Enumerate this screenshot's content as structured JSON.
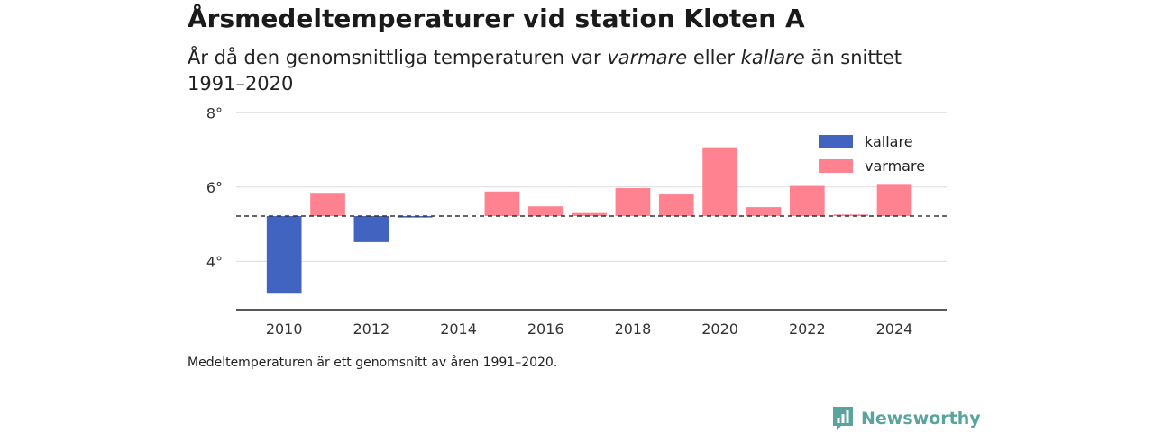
{
  "title": "Årsmedeltemperaturer vid station Kloten A",
  "subtitle": {
    "part1": "År då den genomsnittliga temperaturen var ",
    "warm": "varmare",
    "part2": " eller ",
    "cold": "kallare",
    "part3": " än snittet 1991–2020"
  },
  "footnote": "Medeltemperaturen är ett genomsnitt av åren 1991–2020.",
  "brand": {
    "name": "Newsworthy",
    "icon": "newsworthy-logo-icon",
    "color": "#5aa39e"
  },
  "chart_data": {
    "type": "bar",
    "baseline": 5.22,
    "ylim": [
      2.7,
      8.2
    ],
    "y_ticks": [
      4,
      6,
      8
    ],
    "y_tick_suffix": "°",
    "x_ticks": [
      2010,
      2012,
      2014,
      2016,
      2018,
      2020,
      2022,
      2024
    ],
    "xlim": [
      2008.9,
      2025.2
    ],
    "grid": true,
    "legend_position": "top-right",
    "series": [
      {
        "name": "kallare",
        "color": "#4164c0"
      },
      {
        "name": "varmare",
        "color": "#ff8290"
      }
    ],
    "data": [
      {
        "year": 2010,
        "value": 3.13
      },
      {
        "year": 2011,
        "value": 5.82
      },
      {
        "year": 2012,
        "value": 4.52
      },
      {
        "year": 2013,
        "value": 5.18
      },
      {
        "year": 2015,
        "value": 5.88
      },
      {
        "year": 2016,
        "value": 5.48
      },
      {
        "year": 2017,
        "value": 5.3
      },
      {
        "year": 2018,
        "value": 5.97
      },
      {
        "year": 2019,
        "value": 5.8
      },
      {
        "year": 2020,
        "value": 7.07
      },
      {
        "year": 2021,
        "value": 5.46
      },
      {
        "year": 2022,
        "value": 6.03
      },
      {
        "year": 2023,
        "value": 5.26
      },
      {
        "year": 2024,
        "value": 6.06
      }
    ]
  }
}
